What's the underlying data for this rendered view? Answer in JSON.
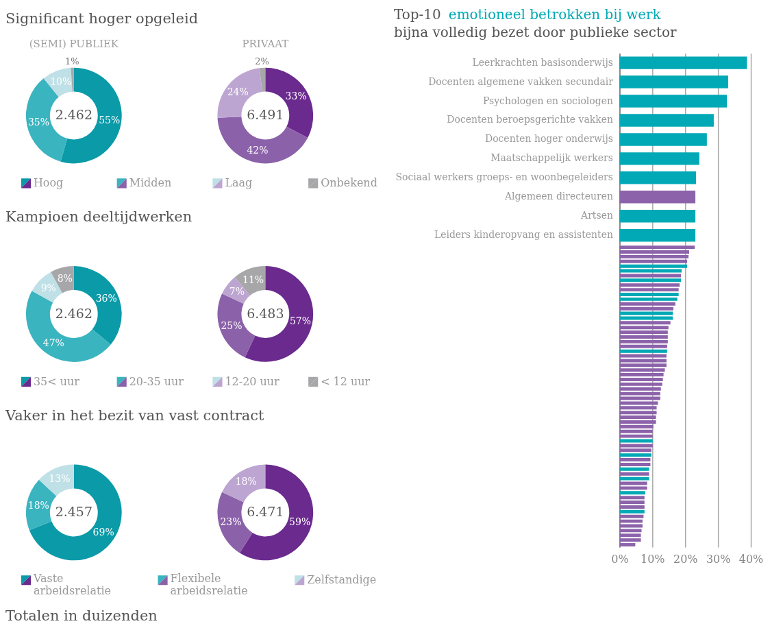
{
  "chart_data": [
    {
      "type": "donut",
      "title": "Significant hoger opgeleid",
      "subtitle": "(SEMI) PUBLIEK",
      "categories": [
        "Hoog",
        "Midden",
        "Laag",
        "Onbekend"
      ],
      "values": [
        55,
        35,
        10,
        1
      ],
      "value_labels": [
        "55%",
        "35%",
        "10%",
        "1%"
      ],
      "colors": [
        "#0a9aa8",
        "#3ab4bf",
        "#bfe0e6",
        "#a7a7a9"
      ],
      "annotations": [
        "2.462"
      ],
      "legend": "bottom"
    },
    {
      "type": "donut",
      "subtitle": "PRIVAAT",
      "categories": [
        null,
        null,
        null,
        null
      ],
      "values": [
        33,
        42,
        24,
        2
      ],
      "value_labels": [
        "33%",
        "42%",
        "24%",
        "2%"
      ],
      "colors": [
        "#6b2a8e",
        "#8b62a9",
        "#bda5d1",
        "#a7a7a9"
      ],
      "annotations": [
        "6.491"
      ]
    },
    {
      "type": "donut",
      "title": "Kampioen deeltijdwerken",
      "categories": [
        "35< uur",
        "20-35 uur",
        "12-20 uur",
        "< 12 uur"
      ],
      "values": [
        36,
        47,
        9,
        8
      ],
      "value_labels": [
        "36%",
        "47%",
        "9%",
        "8%"
      ],
      "colors": [
        "#0a9aa8",
        "#3ab4bf",
        "#bfe0e6",
        "#a7a7a9"
      ],
      "annotations": [
        "2.462"
      ],
      "legend": "bottom"
    },
    {
      "type": "donut",
      "categories": [
        null,
        null,
        null,
        null
      ],
      "values": [
        57,
        25,
        7,
        11
      ],
      "value_labels": [
        "57%",
        "25%",
        "7%",
        "11%"
      ],
      "colors": [
        "#6b2a8e",
        "#8b62a9",
        "#bda5d1",
        "#a7a7a9"
      ],
      "annotations": [
        "6.483"
      ]
    },
    {
      "type": "donut",
      "title": "Vaker in het bezit van vast contract",
      "categories": [
        "Vaste arbeidsrelatie",
        "Flexibele arbeidsrelatie",
        "Zelfstandige"
      ],
      "values": [
        69,
        18,
        13
      ],
      "value_labels": [
        "69%",
        "18%",
        "13%"
      ],
      "colors": [
        "#0a9aa8",
        "#3ab4bf",
        "#bfe0e6"
      ],
      "annotations": [
        "2.457",
        "Totalen in duizenden"
      ],
      "legend": "bottom"
    },
    {
      "type": "donut",
      "categories": [
        null,
        null,
        null
      ],
      "values": [
        59,
        23,
        18
      ],
      "value_labels": [
        "59%",
        "23%",
        "18%"
      ],
      "colors": [
        "#6b2a8e",
        "#8b62a9",
        "#bda5d1"
      ],
      "annotations": [
        "6.471"
      ]
    },
    {
      "type": "bar",
      "orientation": "horizontal",
      "title": "Top-10 emotioneel betrokken bij werk",
      "subtitle": "bijna volledig bezet door publieke sector",
      "categories": [
        "Leerkrachten basisonderwijs",
        "Docenten algemene vakken secundair",
        "Psychologen en sociologen",
        "Docenten beroepsgerichte vakken",
        "Docenten hoger onderwijs",
        "Maatschappelijk werkers",
        "Sociaal werkers groeps- en woonbegeleiders",
        "Algemeen directeuren",
        "Artsen",
        "Leiders kinderopvang en assistenten"
      ],
      "values": [
        38.8,
        33.1,
        32.7,
        28.7,
        26.6,
        24.3,
        23.3,
        23.1,
        23.1,
        23.1
      ],
      "colors": [
        "#00a9b5",
        "#00a9b5",
        "#00a9b5",
        "#00a9b5",
        "#00a9b5",
        "#00a9b5",
        "#00a9b5",
        "#8c63aa",
        "#00a9b5",
        "#00a9b5"
      ],
      "xlim": [
        0,
        40
      ],
      "xticks": [
        {
          "value": 0,
          "label": null
        },
        {
          "value": 10,
          "label": null
        },
        {
          "value": 20,
          "label": null
        },
        {
          "value": 30,
          "label": null
        },
        {
          "value": 40,
          "label": null
        }
      ],
      "grid": "x",
      "tick_labels": "y"
    },
    {
      "type": "bar",
      "orientation": "horizontal",
      "categories": [
        null,
        null,
        null,
        null,
        null,
        null,
        null,
        null,
        null,
        null,
        null,
        null,
        null,
        null,
        null,
        null,
        null,
        null,
        null,
        null,
        null,
        null,
        null,
        null,
        null,
        null,
        null,
        null,
        null,
        null,
        null,
        null,
        null,
        null,
        null,
        null,
        null,
        null,
        null,
        null,
        null,
        null,
        null,
        null,
        null,
        null,
        null,
        null,
        null,
        null,
        null,
        null,
        null,
        null,
        null,
        null,
        null,
        null,
        null,
        null,
        null,
        null,
        null,
        null
      ],
      "values": [
        22.9,
        21.2,
        21.0,
        20.6,
        20.6,
        18.9,
        18.7,
        18.7,
        18.3,
        18.0,
        18.0,
        17.6,
        17.0,
        16.4,
        16.2,
        16.2,
        15.5,
        14.9,
        14.7,
        14.7,
        14.7,
        14.5,
        14.5,
        14.3,
        14.3,
        14.3,
        13.8,
        13.4,
        13.2,
        13.0,
        12.6,
        12.4,
        12.4,
        11.7,
        11.3,
        11.3,
        11.1,
        11.1,
        10.3,
        10.1,
        10.1,
        10.1,
        10.1,
        9.7,
        9.7,
        9.4,
        9.4,
        9.0,
        9.0,
        9.0,
        8.4,
        8.4,
        7.8,
        7.6,
        7.6,
        7.6,
        7.6,
        7.3,
        7.0,
        7.0,
        6.7,
        6.5,
        6.5,
        4.8
      ],
      "colors": [
        "#8c63aa",
        "#8c63aa",
        "#8c63aa",
        "#8c63aa",
        "#00a9b5",
        "#00a9b5",
        "#8c63aa",
        "#00a9b5",
        "#8c63aa",
        "#8c63aa",
        "#00a9b5",
        "#00a9b5",
        "#8c63aa",
        "#8c63aa",
        "#00a9b5",
        "#00a9b5",
        "#8c63aa",
        "#8c63aa",
        "#8c63aa",
        "#8c63aa",
        "#8c63aa",
        "#8c63aa",
        "#00a9b5",
        "#8c63aa",
        "#8c63aa",
        "#8c63aa",
        "#8c63aa",
        "#8c63aa",
        "#8c63aa",
        "#8c63aa",
        "#8c63aa",
        "#8c63aa",
        "#8c63aa",
        "#8c63aa",
        "#8c63aa",
        "#8c63aa",
        "#8c63aa",
        "#8c63aa",
        "#8c63aa",
        "#8c63aa",
        "#8c63aa",
        "#00a9b5",
        "#8c63aa",
        "#8c63aa",
        "#00a9b5",
        "#8c63aa",
        "#8c63aa",
        "#00a9b5",
        "#8c63aa",
        "#00a9b5",
        "#8c63aa",
        "#8c63aa",
        "#00a9b5",
        "#8c63aa",
        "#8c63aa",
        "#8c63aa",
        "#00a9b5",
        "#8c63aa",
        "#8c63aa",
        "#8c63aa",
        "#8c63aa",
        "#8c63aa",
        "#8c63aa",
        "#8c63aa"
      ],
      "xlim": [
        0,
        40
      ],
      "xticks": [
        {
          "value": 0,
          "label": "0%"
        },
        {
          "value": 10,
          "label": "10%"
        },
        {
          "value": 20,
          "label": "20%"
        },
        {
          "value": 30,
          "label": "30%"
        },
        {
          "value": 40,
          "label": "40%"
        }
      ],
      "grid": "x",
      "tick_labels": "x"
    }
  ]
}
